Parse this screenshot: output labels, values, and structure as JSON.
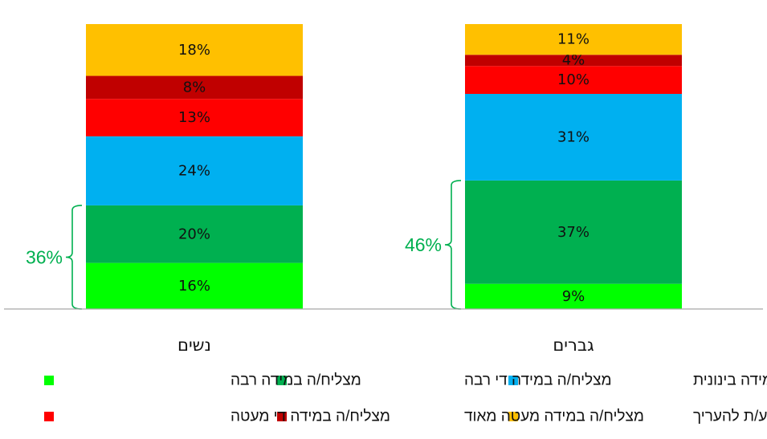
{
  "chart_data": {
    "type": "bar",
    "stacked": true,
    "percent_stacked": true,
    "categories": [
      "נשים",
      "גברים"
    ],
    "series": [
      {
        "name": "מצליח/ה במידה רבה",
        "color": "#00FF00",
        "values": [
          16,
          9
        ]
      },
      {
        "name": "מצליח/ה במידה די רבה",
        "color": "#00B050",
        "values": [
          20,
          37
        ]
      },
      {
        "name": "מצליח/ה במידה בינונית",
        "color": "#00B0F0",
        "values": [
          24,
          31
        ]
      },
      {
        "name": "מצליח/ה במידה די מעטה",
        "color": "#FF0000",
        "values": [
          13,
          10
        ]
      },
      {
        "name": "מצליח/ה במידה מעטה מאוד",
        "color": "#C00000",
        "values": [
          8,
          4
        ]
      },
      {
        "name": "לא יודע/ת להעריך",
        "color": "#FFC000",
        "values": [
          18,
          11
        ]
      }
    ],
    "brace_annotations": [
      {
        "category": "נשים",
        "text": "36%",
        "series_covered": 2
      },
      {
        "category": "גברים",
        "text": "46%",
        "series_covered": 2
      }
    ],
    "annotation_color": "#00B050",
    "axis_color": "#A6A6A6",
    "legend_placement": "bottom",
    "grid": false
  }
}
